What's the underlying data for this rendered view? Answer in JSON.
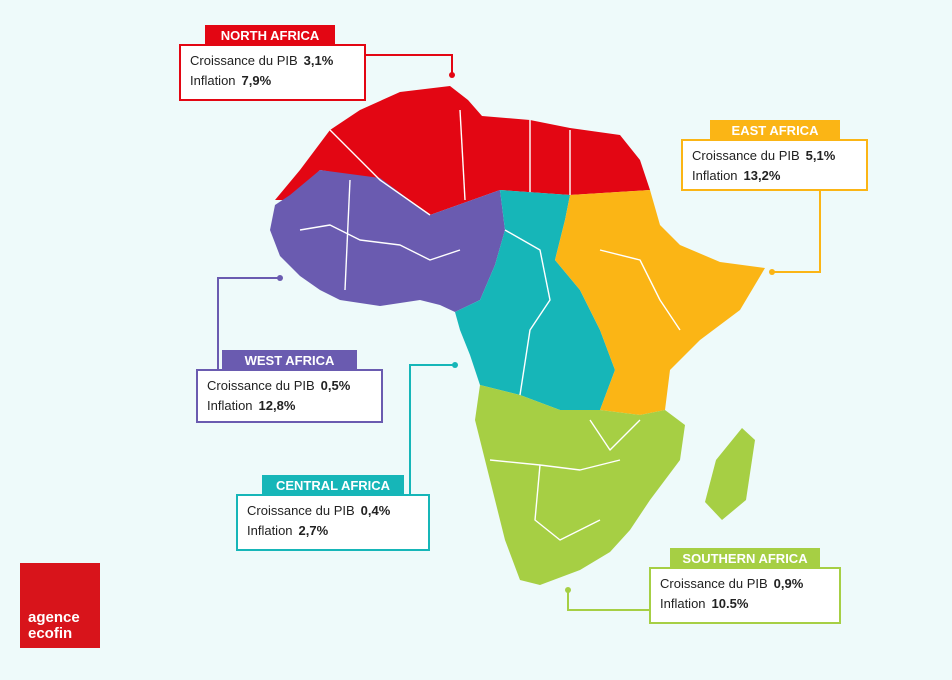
{
  "regions": [
    {
      "name": "NORTH AFRICA",
      "gdp_label": "Croissance du PIB",
      "gdp": "3,1%",
      "inflation_label": "Inflation",
      "inflation": "7,9%",
      "color": "#e30613"
    },
    {
      "name": "EAST AFRICA",
      "gdp_label": "Croissance du PIB",
      "gdp": "5,1%",
      "inflation_label": "Inflation",
      "inflation": "13,2%",
      "color": "#fbb515"
    },
    {
      "name": "WEST AFRICA",
      "gdp_label": "Croissance du PIB",
      "gdp": "0,5%",
      "inflation_label": "Inflation",
      "inflation": "12,8%",
      "color": "#6a5bb0"
    },
    {
      "name": "CENTRAL AFRICA",
      "gdp_label": "Croissance du PIB",
      "gdp": "0,4%",
      "inflation_label": "Inflation",
      "inflation": "2,7%",
      "color": "#16b6b8"
    },
    {
      "name": "SOUTHERN AFRICA",
      "gdp_label": "Croissance du PIB",
      "gdp": "0,9%",
      "inflation_label": "Inflation",
      "inflation": "10.5%",
      "color": "#a6cf44"
    }
  ],
  "logo": {
    "line1": "agence",
    "line2": "ecofin"
  }
}
